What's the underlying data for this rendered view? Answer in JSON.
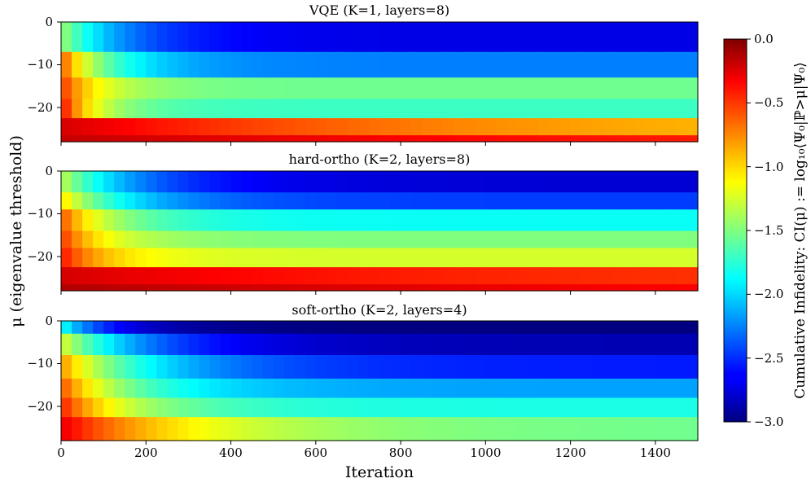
{
  "chart_data": {
    "type": "heatmap",
    "colormap": "jet",
    "xlabel": "Iteration",
    "ylabel": "μ (eigenvalue threshold)",
    "xlim": [
      0,
      1500
    ],
    "ylim": [
      -28,
      0
    ],
    "xticks": [
      "0",
      "200",
      "400",
      "600",
      "800",
      "1000",
      "1200",
      "1400"
    ],
    "xtick_values": [
      0,
      200,
      400,
      600,
      800,
      1000,
      1200,
      1400
    ],
    "yticks": [
      "0",
      "−10",
      "−20"
    ],
    "ytick_values": [
      0,
      -10,
      -20
    ],
    "colorbar": {
      "label": "Cumulative Infidelity: CI(μ) := log₁₀⟨Ψ₀|ℙ>μ|Ψ₀⟩",
      "range": [
        -3.0,
        0.0
      ],
      "ticks": [
        "0.0",
        "−0.5",
        "−1.0",
        "−1.5",
        "−2.0",
        "−2.5",
        "−3.0"
      ],
      "tick_values": [
        0.0,
        -0.5,
        -1.0,
        -1.5,
        -2.0,
        -2.5,
        -3.0
      ]
    },
    "panels": [
      {
        "title": "VQE (K=1, layers=8)",
        "bands": [
          {
            "mu_top": 0,
            "mu_bottom": -7,
            "start": -1.4,
            "final": -2.7,
            "decay": 150
          },
          {
            "mu_top": -7,
            "mu_bottom": -13,
            "start": -0.6,
            "final": -2.25,
            "decay": 120
          },
          {
            "mu_top": -13,
            "mu_bottom": -18,
            "start": -0.5,
            "final": -1.55,
            "decay": 100
          },
          {
            "mu_top": -18,
            "mu_bottom": -22.5,
            "start": -0.35,
            "final": -1.7,
            "decay": 90
          },
          {
            "mu_top": -22.5,
            "mu_bottom": -26.5,
            "start": -0.25,
            "final": -1.05,
            "decay": 900
          },
          {
            "mu_top": -26.5,
            "mu_bottom": -28,
            "start": -0.2,
            "final": -0.6,
            "decay": 1500
          }
        ]
      },
      {
        "title": "hard-ortho (K=2, layers=8)",
        "bands": [
          {
            "mu_top": 0,
            "mu_bottom": -5,
            "start": -1.3,
            "final": -2.75,
            "decay": 180
          },
          {
            "mu_top": -5,
            "mu_bottom": -9,
            "start": -1.0,
            "final": -2.45,
            "decay": 160
          },
          {
            "mu_top": -9,
            "mu_bottom": -14,
            "start": -0.6,
            "final": -1.85,
            "decay": 130
          },
          {
            "mu_top": -14,
            "mu_bottom": -18,
            "start": -0.5,
            "final": -1.5,
            "decay": 110
          },
          {
            "mu_top": -18,
            "mu_bottom": -22.5,
            "start": -0.4,
            "final": -1.25,
            "decay": 110
          },
          {
            "mu_top": -22.5,
            "mu_bottom": -26.5,
            "start": -0.25,
            "final": -0.55,
            "decay": 700
          },
          {
            "mu_top": -26.5,
            "mu_bottom": -28,
            "start": -0.15,
            "final": -0.5,
            "decay": 1500
          }
        ]
      },
      {
        "title": "soft-ortho (K=2, layers=4)",
        "bands": [
          {
            "mu_top": 0,
            "mu_bottom": -3,
            "start": -1.8,
            "final": -3.0,
            "decay": 120
          },
          {
            "mu_top": -3,
            "mu_bottom": -8,
            "start": -1.2,
            "final": -2.85,
            "decay": 200
          },
          {
            "mu_top": -8,
            "mu_bottom": -13.5,
            "start": -0.8,
            "final": -2.55,
            "decay": 220
          },
          {
            "mu_top": -13.5,
            "mu_bottom": -18,
            "start": -0.6,
            "final": -2.15,
            "decay": 180
          },
          {
            "mu_top": -18,
            "mu_bottom": -22.5,
            "start": -0.45,
            "final": -1.8,
            "decay": 170
          },
          {
            "mu_top": -22.5,
            "mu_bottom": -28,
            "start": -0.3,
            "final": -1.55,
            "decay": 300
          }
        ]
      }
    ]
  }
}
